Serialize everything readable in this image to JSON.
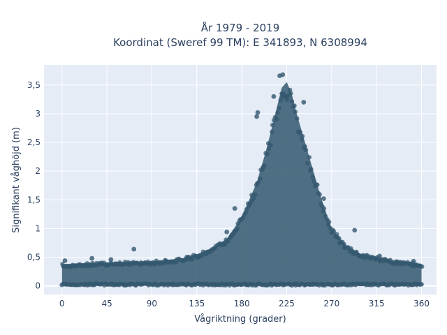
{
  "chart_data": {
    "type": "scatter",
    "title_line1": "År 1979 - 2019",
    "title_line2": "Koordinat (Sweref 99 TM): E 341893, N 6308994",
    "xlabel": "Vågriktning (grader)",
    "ylabel": "Signifikant våghöjd (m)",
    "xlim": [
      -18,
      375
    ],
    "ylim": [
      -0.15,
      3.85
    ],
    "xticks": [
      0,
      45,
      90,
      135,
      180,
      225,
      270,
      315,
      360
    ],
    "xtick_labels": [
      "0",
      "45",
      "90",
      "135",
      "180",
      "225",
      "270",
      "315",
      "360"
    ],
    "yticks": [
      0,
      0.5,
      1,
      1.5,
      2,
      2.5,
      3,
      3.5
    ],
    "ytick_labels": [
      "0",
      "0,5",
      "1",
      "1,5",
      "2",
      "2,5",
      "3",
      "3,5"
    ],
    "grid": true,
    "marker_color": "#34586f",
    "background_color": "#e5ecf6",
    "envelope": {
      "x": [
        0,
        30,
        60,
        90,
        120,
        135,
        150,
        165,
        180,
        195,
        205,
        215,
        220,
        225,
        230,
        235,
        240,
        250,
        260,
        270,
        285,
        300,
        315,
        330,
        345,
        360
      ],
      "upper": [
        0.38,
        0.4,
        0.42,
        0.43,
        0.48,
        0.55,
        0.66,
        0.82,
        1.2,
        1.8,
        2.4,
        3.1,
        3.45,
        3.55,
        3.35,
        3.0,
        2.7,
        2.1,
        1.5,
        1.0,
        0.7,
        0.55,
        0.5,
        0.45,
        0.42,
        0.38
      ],
      "lower": [
        0.02,
        0.02,
        0.02,
        0.02,
        0.02,
        0.02,
        0.02,
        0.02,
        0.02,
        0.02,
        0.02,
        0.02,
        0.02,
        0.02,
        0.02,
        0.02,
        0.02,
        0.02,
        0.02,
        0.02,
        0.02,
        0.02,
        0.02,
        0.02,
        0.02,
        0.02
      ]
    },
    "outliers": [
      {
        "x": 72,
        "y": 0.64
      },
      {
        "x": 218,
        "y": 3.66
      },
      {
        "x": 221,
        "y": 3.68
      },
      {
        "x": 212,
        "y": 3.3
      },
      {
        "x": 196,
        "y": 3.02
      },
      {
        "x": 195,
        "y": 2.95
      },
      {
        "x": 242,
        "y": 3.2
      },
      {
        "x": 293,
        "y": 0.97
      },
      {
        "x": 262,
        "y": 1.52
      },
      {
        "x": 173,
        "y": 1.35
      },
      {
        "x": 165,
        "y": 0.94
      },
      {
        "x": 30,
        "y": 0.48
      },
      {
        "x": 49,
        "y": 0.46
      },
      {
        "x": 3,
        "y": 0.44
      },
      {
        "x": 352,
        "y": 0.43
      },
      {
        "x": 318,
        "y": 0.52
      },
      {
        "x": 125,
        "y": 0.5
      }
    ]
  }
}
